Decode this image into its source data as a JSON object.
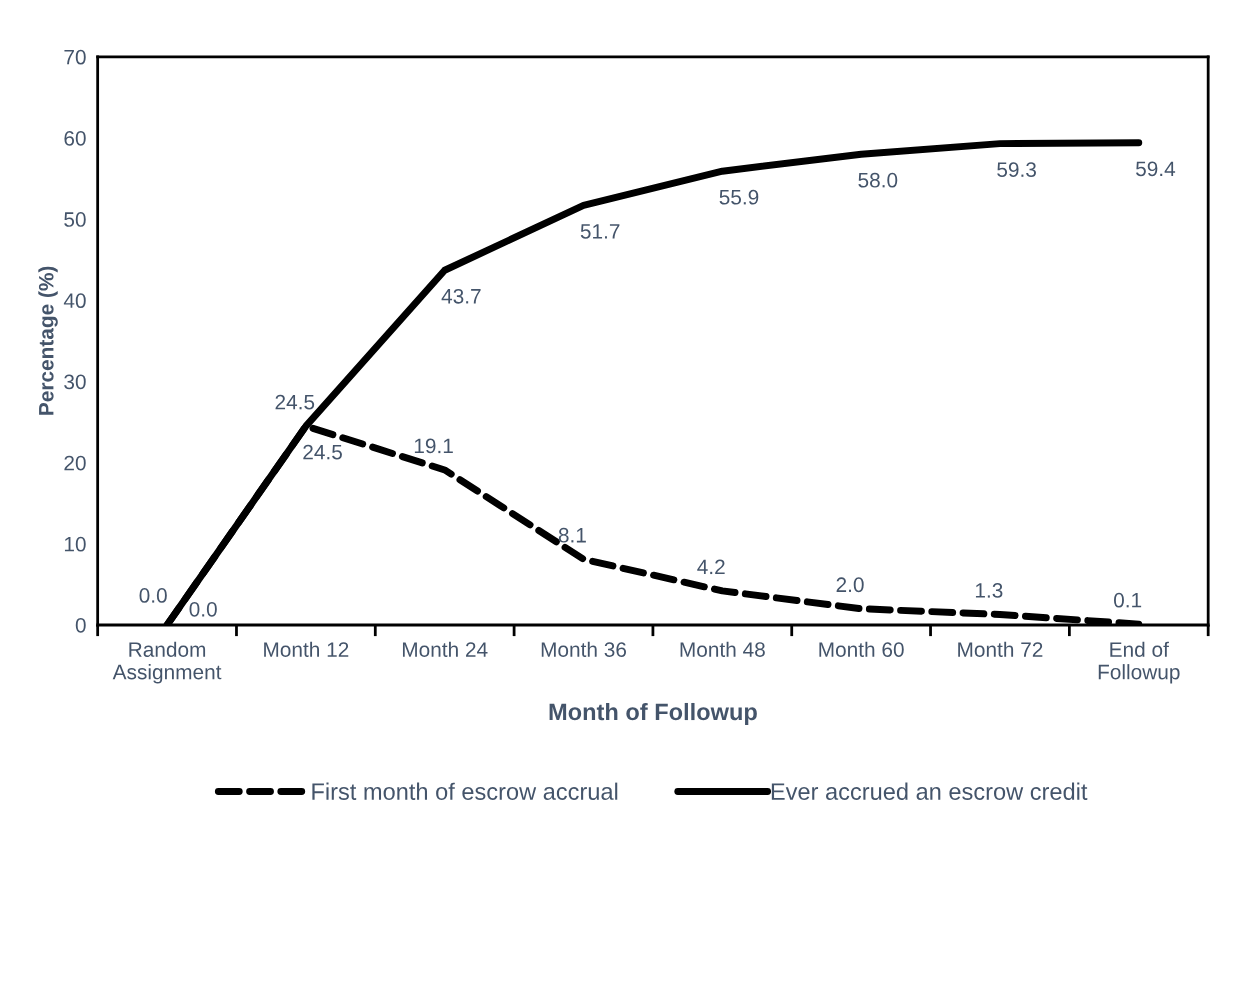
{
  "chart_data": {
    "type": "line",
    "xlabel": "Month of Followup",
    "ylabel": "Percentage (%)",
    "categories": [
      "Random\nAssignment",
      "Month 12",
      "Month 24",
      "Month 36",
      "Month 48",
      "Month 60",
      "Month 72",
      "End of\nFollowup"
    ],
    "series": [
      {
        "name": "First month of escrow accrual",
        "color": "#000000",
        "line_style": "dashed",
        "values": [
          0.0,
          24.5,
          19.1,
          8.1,
          4.2,
          2.0,
          1.3,
          0.1
        ],
        "value_labels": [
          "0.0",
          "24.5",
          "19.1",
          "8.1",
          "4.2",
          "2.0",
          "1.3",
          "0.1"
        ]
      },
      {
        "name": "Ever accrued an escrow credit",
        "color": "#000000",
        "line_style": "solid",
        "values": [
          0.0,
          24.5,
          43.7,
          51.7,
          55.9,
          58.0,
          59.3,
          59.4
        ],
        "value_labels": [
          "0.0",
          "24.5",
          "43.7",
          "51.7",
          "55.9",
          "58.0",
          "59.3",
          "59.4"
        ]
      }
    ],
    "ylim": [
      0,
      70
    ],
    "yticks": [
      0,
      10,
      20,
      30,
      40,
      50,
      60,
      70
    ],
    "grid": false,
    "legend": "bottom",
    "marker": "none"
  }
}
